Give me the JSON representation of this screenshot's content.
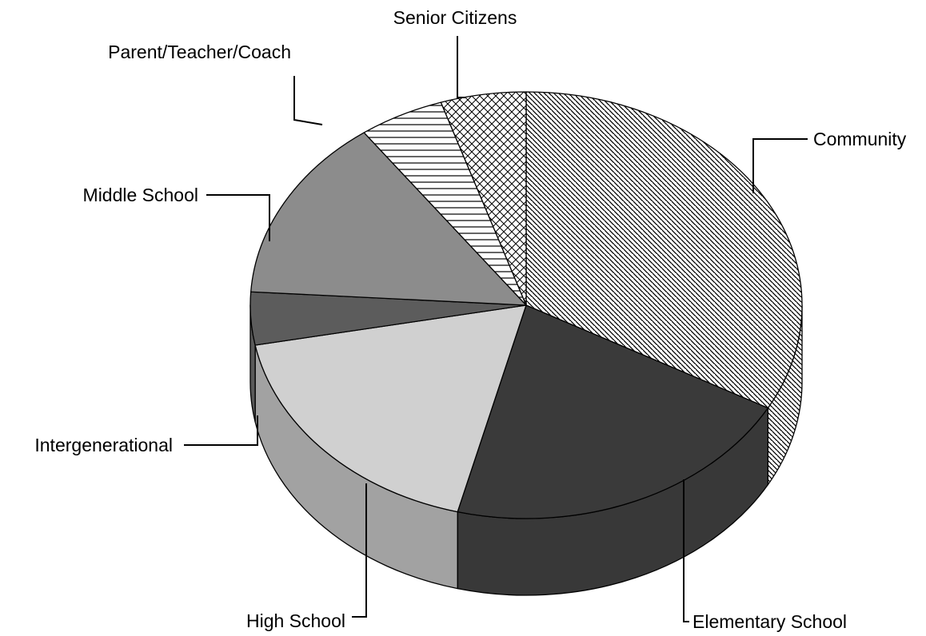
{
  "chart_data": {
    "type": "pie",
    "style": "3d-exploded-none",
    "title": "",
    "legend": "none",
    "slices": [
      {
        "label": "Community",
        "value": 33,
        "color": "#ffffff",
        "pattern": "diag-hatch"
      },
      {
        "label": "Elementary School",
        "value": 21,
        "color": "#3a3a3a",
        "pattern": "solid"
      },
      {
        "label": "High School",
        "value": 18,
        "color": "#d0d0d0",
        "pattern": "solid"
      },
      {
        "label": "Intergenerational",
        "value": 4,
        "color": "#5c5c5c",
        "pattern": "solid"
      },
      {
        "label": "Middle School",
        "value": 14,
        "color": "#8c8c8c",
        "pattern": "solid"
      },
      {
        "label": "Parent/Teacher/Coach",
        "value": 5,
        "color": "#ffffff",
        "pattern": "horizontal-lines"
      },
      {
        "label": "Senior Citizens",
        "value": 5,
        "color": "#ffffff",
        "pattern": "cross-hatch"
      }
    ]
  }
}
